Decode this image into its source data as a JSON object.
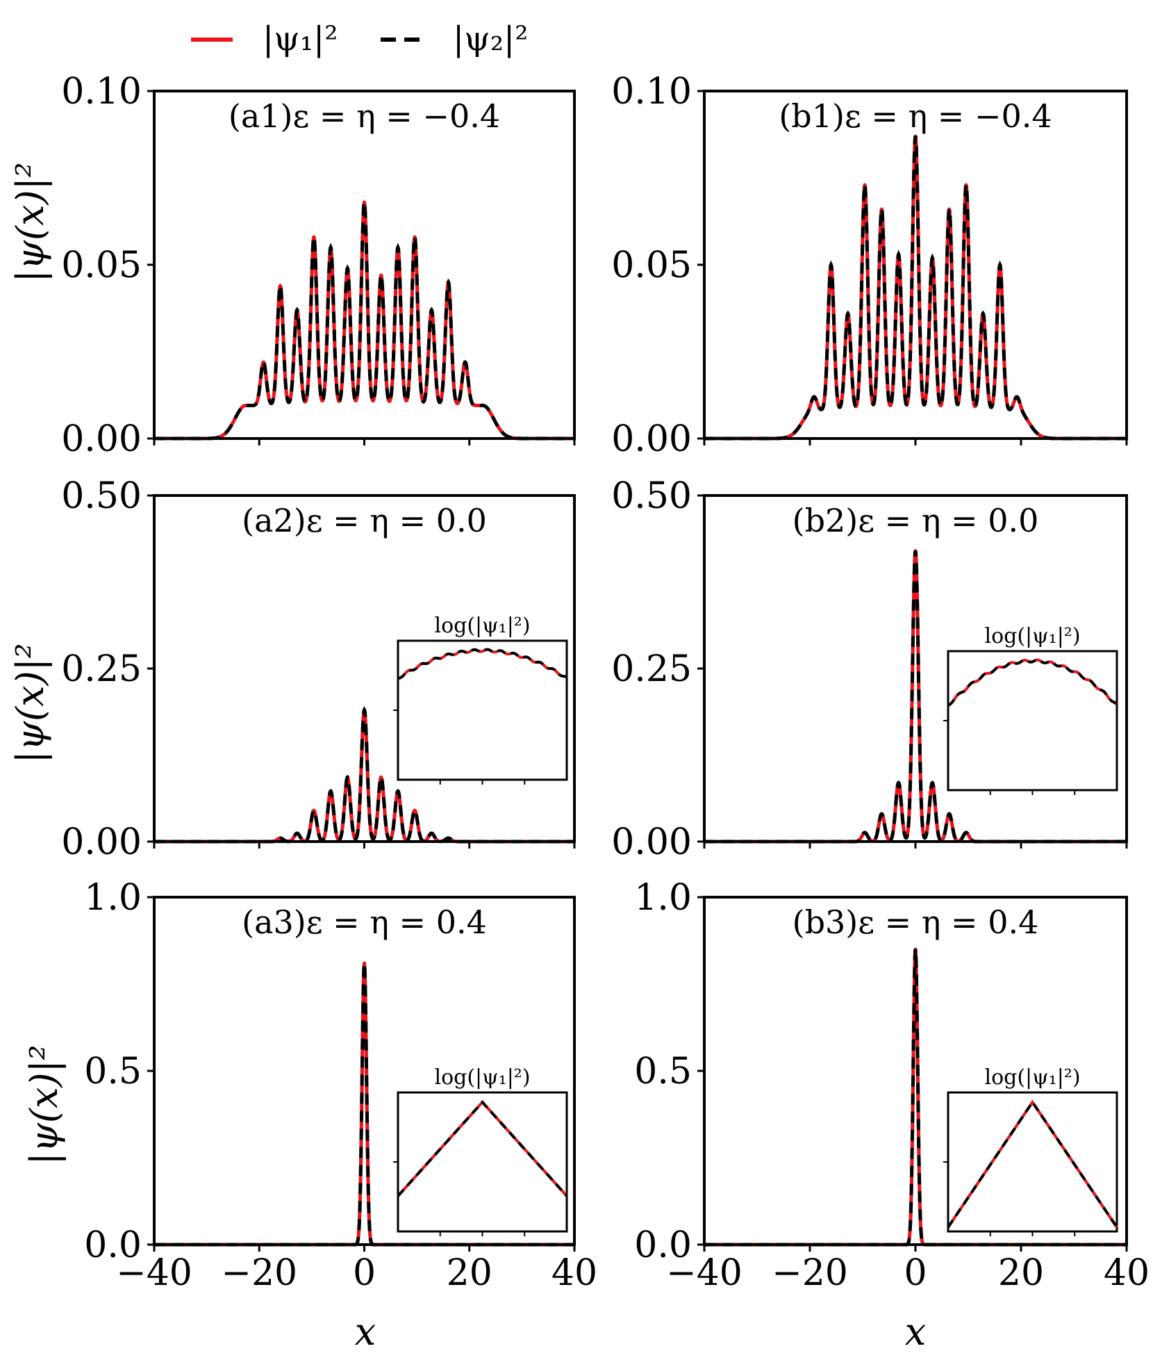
{
  "figure": {
    "legend": [
      {
        "label": "|ψ₁|²",
        "color": "#e8131b",
        "style": "solid"
      },
      {
        "label": "|ψ₂|²",
        "color": "#000000",
        "style": "dashed"
      }
    ],
    "ylabel": "|ψ(x)|²",
    "xlabel": "x"
  },
  "chart_data": [
    {
      "id": "a1",
      "type": "line",
      "title": "(a1)ε = η = −0.4",
      "xlim": [
        -40,
        40
      ],
      "ylim": [
        0,
        0.1
      ],
      "yticks": [
        0,
        0.05,
        0.1
      ],
      "yticklabels": [
        "0.00",
        "0.05",
        "0.10"
      ],
      "xticks": [
        -40,
        -20,
        0,
        20,
        40
      ],
      "xticklabels": [
        "−40",
        "−20",
        "0",
        "20",
        "40"
      ],
      "show_xticklabels": false,
      "baseline": 0.0095,
      "peaks": [
        {
          "x": -25.6,
          "y": 0.003
        },
        {
          "x": -22.4,
          "y": 0.009
        },
        {
          "x": -19.2,
          "y": 0.022
        },
        {
          "x": -16.0,
          "y": 0.044
        },
        {
          "x": -12.8,
          "y": 0.037
        },
        {
          "x": -9.6,
          "y": 0.058
        },
        {
          "x": -6.4,
          "y": 0.055
        },
        {
          "x": -3.2,
          "y": 0.049
        },
        {
          "x": 0,
          "y": 0.068
        },
        {
          "x": 3.2,
          "y": 0.047
        },
        {
          "x": 6.4,
          "y": 0.055
        },
        {
          "x": 9.6,
          "y": 0.058
        },
        {
          "x": 12.8,
          "y": 0.037
        },
        {
          "x": 16.0,
          "y": 0.045
        },
        {
          "x": 19.2,
          "y": 0.022
        },
        {
          "x": 22.4,
          "y": 0.009
        },
        {
          "x": 25.6,
          "y": 0.003
        }
      ],
      "series": [
        "|ψ₁|²",
        "|ψ₂|²"
      ]
    },
    {
      "id": "b1",
      "type": "line",
      "title": "(b1)ε = η = −0.4",
      "xlim": [
        -40,
        40
      ],
      "ylim": [
        0,
        0.1
      ],
      "yticks": [
        0,
        0.05,
        0.1
      ],
      "yticklabels": [
        "0.00",
        "0.05",
        "0.10"
      ],
      "xticks": [
        -40,
        -20,
        0,
        20,
        40
      ],
      "xticklabels": [
        "−40",
        "−20",
        "0",
        "20",
        "40"
      ],
      "show_xticklabels": false,
      "baseline": 0.008,
      "peaks": [
        {
          "x": -22.4,
          "y": 0.001
        },
        {
          "x": -19.2,
          "y": 0.012
        },
        {
          "x": -16.0,
          "y": 0.05
        },
        {
          "x": -12.8,
          "y": 0.036
        },
        {
          "x": -9.6,
          "y": 0.073
        },
        {
          "x": -6.4,
          "y": 0.066
        },
        {
          "x": -3.2,
          "y": 0.053
        },
        {
          "x": 0,
          "y": 0.087
        },
        {
          "x": 3.2,
          "y": 0.052
        },
        {
          "x": 6.4,
          "y": 0.066
        },
        {
          "x": 9.6,
          "y": 0.073
        },
        {
          "x": 12.8,
          "y": 0.036
        },
        {
          "x": 16.0,
          "y": 0.05
        },
        {
          "x": 19.2,
          "y": 0.012
        },
        {
          "x": 22.4,
          "y": 0.001
        }
      ],
      "series": [
        "|ψ₁|²",
        "|ψ₂|²"
      ]
    },
    {
      "id": "a2",
      "type": "line",
      "title": "(a2)ε = η = 0.0",
      "xlim": [
        -40,
        40
      ],
      "ylim": [
        0,
        0.5
      ],
      "yticks": [
        0,
        0.25,
        0.5
      ],
      "yticklabels": [
        "0.00",
        "0.25",
        "0.50"
      ],
      "xticks": [
        -40,
        -20,
        0,
        20,
        40
      ],
      "xticklabels": [
        "−40",
        "−20",
        "0",
        "20",
        "40"
      ],
      "show_xticklabels": false,
      "baseline": 0.0,
      "peaks": [
        {
          "x": -16.0,
          "y": 0.005
        },
        {
          "x": -12.8,
          "y": 0.012
        },
        {
          "x": -9.6,
          "y": 0.045
        },
        {
          "x": -6.4,
          "y": 0.073
        },
        {
          "x": -3.2,
          "y": 0.093
        },
        {
          "x": 0,
          "y": 0.19
        },
        {
          "x": 3.2,
          "y": 0.093
        },
        {
          "x": 6.4,
          "y": 0.073
        },
        {
          "x": 9.6,
          "y": 0.045
        },
        {
          "x": 12.8,
          "y": 0.012
        },
        {
          "x": 16.0,
          "y": 0.005
        }
      ],
      "inset": {
        "title": "log(|ψ₁|²)",
        "shape": "parabola",
        "edge_level": 0.78,
        "oscillation": true
      },
      "series": [
        "|ψ₁|²",
        "|ψ₂|²"
      ]
    },
    {
      "id": "b2",
      "type": "line",
      "title": "(b2)ε = η = 0.0",
      "xlim": [
        -40,
        40
      ],
      "ylim": [
        0,
        0.5
      ],
      "yticks": [
        0,
        0.25,
        0.5
      ],
      "yticklabels": [
        "0.00",
        "0.25",
        "0.50"
      ],
      "xticks": [
        -40,
        -20,
        0,
        20,
        40
      ],
      "xticklabels": [
        "−40",
        "−20",
        "0",
        "20",
        "40"
      ],
      "show_xticklabels": false,
      "baseline": 0.0,
      "peaks": [
        {
          "x": -9.6,
          "y": 0.013
        },
        {
          "x": -6.4,
          "y": 0.04
        },
        {
          "x": -3.2,
          "y": 0.085
        },
        {
          "x": 0,
          "y": 0.42
        },
        {
          "x": 3.2,
          "y": 0.085
        },
        {
          "x": 6.4,
          "y": 0.04
        },
        {
          "x": 9.6,
          "y": 0.013
        }
      ],
      "inset": {
        "title": "log(|ψ₁|²)",
        "shape": "parabola",
        "edge_level": 0.62,
        "oscillation": true
      },
      "series": [
        "|ψ₁|²",
        "|ψ₂|²"
      ]
    },
    {
      "id": "a3",
      "type": "line",
      "title": "(a3)ε = η = 0.4",
      "xlim": [
        -40,
        40
      ],
      "ylim": [
        0,
        1.0
      ],
      "yticks": [
        0,
        0.5,
        1.0
      ],
      "yticklabels": [
        "0.0",
        "0.5",
        "1.0"
      ],
      "xticks": [
        -40,
        -20,
        0,
        20,
        40
      ],
      "xticklabels": [
        "−40",
        "−20",
        "0",
        "20",
        "40"
      ],
      "show_xticklabels": true,
      "baseline": 0.0,
      "peaks": [
        {
          "x": 0,
          "y": 0.81
        }
      ],
      "inset": {
        "title": "log(|ψ₁|²)",
        "shape": "triangle",
        "edge_level": 0.25,
        "oscillation": false
      },
      "series": [
        "|ψ₁|²",
        "|ψ₂|²"
      ]
    },
    {
      "id": "b3",
      "type": "line",
      "title": "(b3)ε = η = 0.4",
      "xlim": [
        -40,
        40
      ],
      "ylim": [
        0,
        1.0
      ],
      "yticks": [
        0,
        0.5,
        1.0
      ],
      "yticklabels": [
        "0.0",
        "0.5",
        "1.0"
      ],
      "xticks": [
        -40,
        -20,
        0,
        20,
        40
      ],
      "xticklabels": [
        "−40",
        "−20",
        "0",
        "20",
        "40"
      ],
      "show_xticklabels": true,
      "baseline": 0.0,
      "peaks": [
        {
          "x": 0,
          "y": 0.85
        }
      ],
      "inset": {
        "title": "log(|ψ₁|²)",
        "shape": "triangle",
        "edge_level": 0.0,
        "oscillation": false
      },
      "series": [
        "|ψ₁|²",
        "|ψ₂|²"
      ]
    }
  ]
}
